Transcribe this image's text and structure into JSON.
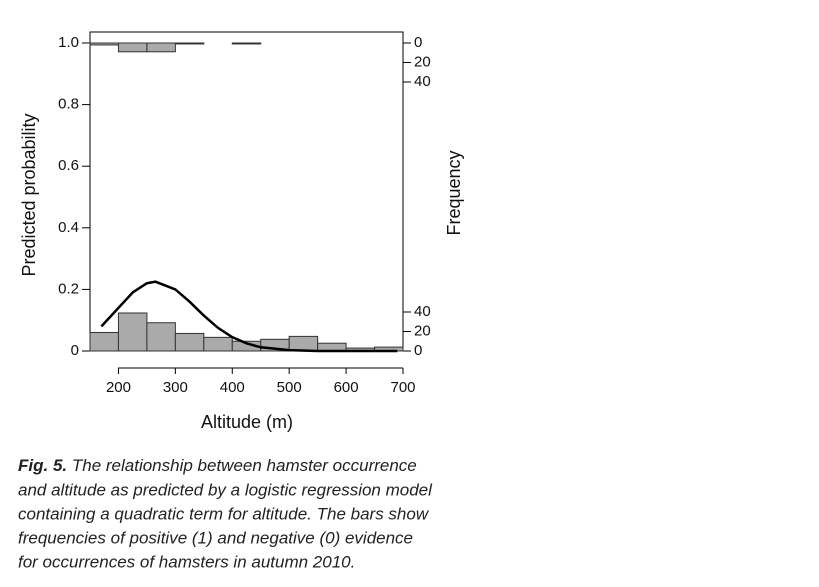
{
  "chart_data": {
    "type": "logistic-histogram",
    "xlabel": "Altitude (m)",
    "ylabel": "Predicted probability",
    "y2label": "Frequency",
    "xlim": [
      150,
      700
    ],
    "xticks": [
      200,
      300,
      400,
      500,
      600,
      700
    ],
    "ylim": [
      0,
      1
    ],
    "yticks": [
      {
        "value": 0,
        "label": "0"
      },
      0.2,
      0.4,
      0.6,
      0.8,
      {
        "value": 1,
        "label": "1.0"
      }
    ],
    "y2lim": [
      0,
      316
    ],
    "y2ticks": [
      0,
      20,
      40
    ],
    "y3lim": [
      316,
      0
    ],
    "y3ticks": [
      0,
      20,
      40
    ],
    "bins": [
      150,
      200,
      250,
      300,
      350,
      400,
      450,
      500,
      550,
      600,
      650,
      700
    ],
    "bar_color": "#aaaaaa",
    "negatives": {
      "axis": "y2",
      "values": [
        19,
        39,
        29,
        18,
        14,
        10,
        12,
        15,
        8,
        3,
        4
      ]
    },
    "positives": {
      "axis": "y3",
      "values": [
        2,
        9,
        9,
        1,
        0,
        1,
        0,
        0,
        0,
        0,
        0
      ]
    },
    "curve": {
      "color": "#000000",
      "x": [
        170,
        200,
        225,
        250,
        265,
        300,
        325,
        350,
        375,
        400,
        425,
        450,
        500,
        550,
        600,
        690
      ],
      "values": [
        0.08,
        0.14,
        0.19,
        0.22,
        0.225,
        0.2,
        0.16,
        0.115,
        0.075,
        0.045,
        0.025,
        0.012,
        0.003,
        0,
        0,
        0
      ]
    },
    "caption": {
      "label": "Fig. 5.",
      "lines": [
        "The relationship between hamster occurrence",
        "and altitude as predicted by a logistic regression model",
        "containing a quadratic term for altitude. The bars show",
        "frequencies of positive (1) and negative (0) evidence",
        "for occurrences of hamsters in autumn 2010."
      ]
    }
  }
}
